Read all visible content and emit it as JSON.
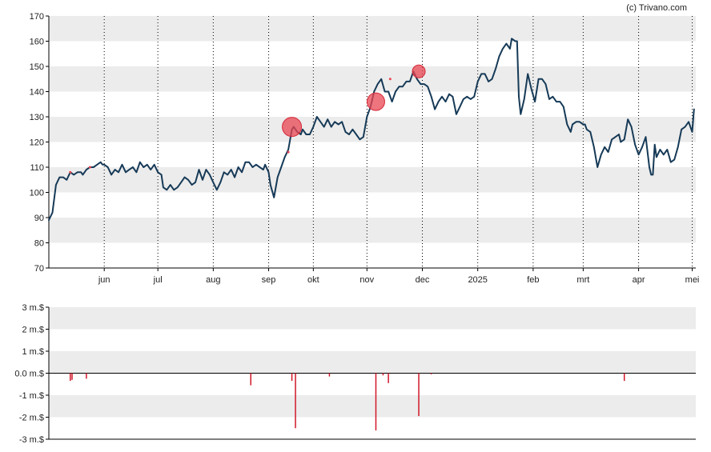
{
  "credit": "(c) Trivano.com",
  "colors": {
    "line": "#163a57",
    "marker_fill": "#e84552",
    "marker_stroke": "#d42a39",
    "volume_bar": "#d01729",
    "band": "#ececec",
    "axis": "#000000"
  },
  "chart_data": [
    {
      "type": "line",
      "name": "price-chart",
      "x_tick_labels": [
        "jun",
        "jul",
        "aug",
        "sep",
        "okt",
        "nov",
        "dec",
        "2025",
        "feb",
        "mrt",
        "apr",
        "mei"
      ],
      "x_tick_days": [
        31,
        61,
        92,
        123,
        148,
        178,
        209,
        240,
        271,
        299,
        330,
        360
      ],
      "y_tick_labels": [
        "170",
        "160",
        "150",
        "140",
        "130",
        "120",
        "110",
        "100",
        "90",
        "80",
        "70"
      ],
      "ylim": [
        70,
        170
      ],
      "x_range_days": [
        0,
        362
      ],
      "grid": "horizontal bands and dotted vertical month lines",
      "series": [
        {
          "values_day_price": [
            [
              0,
              89
            ],
            [
              2,
              92
            ],
            [
              4,
              103
            ],
            [
              6,
              106
            ],
            [
              8,
              106
            ],
            [
              10,
              105
            ],
            [
              12,
              108
            ],
            [
              14,
              107
            ],
            [
              16,
              108
            ],
            [
              18,
              108
            ],
            [
              19,
              107
            ],
            [
              21,
              109
            ],
            [
              23,
              110
            ],
            [
              25,
              110
            ],
            [
              27,
              111
            ],
            [
              29,
              112
            ],
            [
              30,
              111
            ],
            [
              31,
              111
            ],
            [
              33,
              110
            ],
            [
              35,
              107
            ],
            [
              37,
              109
            ],
            [
              39,
              108
            ],
            [
              41,
              111
            ],
            [
              43,
              108
            ],
            [
              45,
              109
            ],
            [
              47,
              110
            ],
            [
              49,
              108
            ],
            [
              51,
              112
            ],
            [
              53,
              110
            ],
            [
              55,
              111
            ],
            [
              57,
              109
            ],
            [
              59,
              111
            ],
            [
              61,
              108
            ],
            [
              63,
              107
            ],
            [
              64,
              102
            ],
            [
              66,
              101
            ],
            [
              68,
              103
            ],
            [
              70,
              101
            ],
            [
              72,
              102
            ],
            [
              74,
              104
            ],
            [
              76,
              106
            ],
            [
              78,
              105
            ],
            [
              80,
              103
            ],
            [
              82,
              104
            ],
            [
              84,
              109
            ],
            [
              86,
              105
            ],
            [
              88,
              109
            ],
            [
              90,
              107
            ],
            [
              92,
              104
            ],
            [
              94,
              101
            ],
            [
              96,
              104
            ],
            [
              98,
              108
            ],
            [
              100,
              107
            ],
            [
              102,
              109
            ],
            [
              104,
              106
            ],
            [
              106,
              110
            ],
            [
              108,
              108
            ],
            [
              110,
              112
            ],
            [
              112,
              112
            ],
            [
              114,
              110
            ],
            [
              116,
              111
            ],
            [
              118,
              110
            ],
            [
              120,
              109
            ],
            [
              121,
              111
            ],
            [
              123,
              108
            ],
            [
              124,
              103
            ],
            [
              126,
              98
            ],
            [
              128,
              106
            ],
            [
              130,
              110
            ],
            [
              132,
              114
            ],
            [
              134,
              117
            ],
            [
              136,
              125
            ],
            [
              137,
              126
            ],
            [
              139,
              124
            ],
            [
              141,
              123
            ],
            [
              142,
              125
            ],
            [
              144,
              123
            ],
            [
              146,
              123
            ],
            [
              148,
              126
            ],
            [
              150,
              130
            ],
            [
              152,
              128
            ],
            [
              154,
              126
            ],
            [
              156,
              129
            ],
            [
              158,
              126
            ],
            [
              160,
              128
            ],
            [
              162,
              127
            ],
            [
              164,
              128
            ],
            [
              166,
              124
            ],
            [
              168,
              123
            ],
            [
              170,
              125
            ],
            [
              172,
              123
            ],
            [
              174,
              121
            ],
            [
              176,
              122
            ],
            [
              178,
              130
            ],
            [
              180,
              134
            ],
            [
              182,
              140
            ],
            [
              184,
              143
            ],
            [
              186,
              145
            ],
            [
              188,
              140
            ],
            [
              190,
              140
            ],
            [
              192,
              136
            ],
            [
              194,
              140
            ],
            [
              196,
              142
            ],
            [
              198,
              142
            ],
            [
              200,
              144
            ],
            [
              202,
              144
            ],
            [
              204,
              148
            ],
            [
              206,
              145
            ],
            [
              208,
              143
            ],
            [
              210,
              143
            ],
            [
              212,
              142
            ],
            [
              214,
              138
            ],
            [
              216,
              133
            ],
            [
              218,
              136
            ],
            [
              220,
              138
            ],
            [
              222,
              136
            ],
            [
              224,
              139
            ],
            [
              226,
              138
            ],
            [
              228,
              131
            ],
            [
              230,
              134
            ],
            [
              232,
              137
            ],
            [
              234,
              138
            ],
            [
              236,
              137
            ],
            [
              238,
              138
            ],
            [
              240,
              144
            ],
            [
              242,
              147
            ],
            [
              244,
              147
            ],
            [
              246,
              144
            ],
            [
              248,
              145
            ],
            [
              250,
              149
            ],
            [
              252,
              154
            ],
            [
              254,
              157
            ],
            [
              256,
              159
            ],
            [
              258,
              157
            ],
            [
              259,
              161
            ],
            [
              261,
              160
            ],
            [
              262,
              160
            ],
            [
              263,
              138
            ],
            [
              264,
              131
            ],
            [
              266,
              137
            ],
            [
              268,
              147
            ],
            [
              270,
              141
            ],
            [
              272,
              136
            ],
            [
              274,
              145
            ],
            [
              276,
              145
            ],
            [
              278,
              143
            ],
            [
              280,
              137
            ],
            [
              282,
              138
            ],
            [
              284,
              136
            ],
            [
              286,
              136
            ],
            [
              288,
              134
            ],
            [
              290,
              127
            ],
            [
              292,
              124
            ],
            [
              293,
              127
            ],
            [
              295,
              128
            ],
            [
              297,
              128
            ],
            [
              299,
              127
            ],
            [
              300,
              127
            ],
            [
              301,
              125
            ],
            [
              303,
              124
            ],
            [
              305,
              118
            ],
            [
              307,
              110
            ],
            [
              309,
              115
            ],
            [
              311,
              118
            ],
            [
              313,
              116
            ],
            [
              315,
              121
            ],
            [
              317,
              122
            ],
            [
              319,
              123
            ],
            [
              320,
              120
            ],
            [
              322,
              121
            ],
            [
              324,
              129
            ],
            [
              326,
              126
            ],
            [
              328,
              119
            ],
            [
              330,
              115
            ],
            [
              332,
              118
            ],
            [
              334,
              122
            ],
            [
              336,
              110
            ],
            [
              337,
              107
            ],
            [
              338,
              107
            ],
            [
              339,
              119
            ],
            [
              340,
              114
            ],
            [
              342,
              117
            ],
            [
              344,
              115
            ],
            [
              346,
              117
            ],
            [
              348,
              112
            ],
            [
              350,
              113
            ],
            [
              352,
              118
            ],
            [
              354,
              125
            ],
            [
              356,
              126
            ],
            [
              358,
              128
            ],
            [
              360,
              124
            ],
            [
              361,
              133
            ]
          ]
        }
      ],
      "markers_day_price_size": [
        [
          12,
          108,
          1
        ],
        [
          23,
          110,
          1
        ],
        [
          136,
          126,
          12
        ],
        [
          134,
          116,
          1
        ],
        [
          183,
          136,
          11
        ],
        [
          191,
          145,
          1
        ],
        [
          207,
          148,
          8
        ]
      ]
    },
    {
      "type": "bar",
      "name": "volume-chart",
      "y_tick_labels": [
        "3 m.$",
        "2 m.$",
        "1 m.$",
        "0.0 m.$",
        "-1 m.$",
        "-2 m.$",
        "-3 m.$"
      ],
      "ylim": [
        -3,
        3
      ],
      "bars_day_value": [
        [
          12,
          -0.35
        ],
        [
          13,
          -0.3
        ],
        [
          21,
          -0.25
        ],
        [
          113,
          -0.55
        ],
        [
          136,
          -0.35
        ],
        [
          138,
          -2.5
        ],
        [
          157,
          -0.15
        ],
        [
          183,
          -2.6
        ],
        [
          187,
          -0.1
        ],
        [
          190,
          -0.45
        ],
        [
          207,
          -1.95
        ],
        [
          214,
          -0.05
        ],
        [
          322,
          -0.35
        ]
      ]
    }
  ]
}
